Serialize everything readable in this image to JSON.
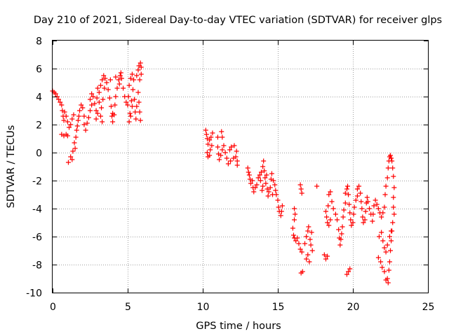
{
  "chart_data": {
    "type": "scatter",
    "title": "Day 210 of 2021, Sidereal Day-to-day VTEC variation (SDTVAR) for receiver glps",
    "xlabel": "GPS time / hours",
    "ylabel": "SDTVAR / TECUs",
    "xlim": [
      0,
      25
    ],
    "ylim": [
      -10,
      8
    ],
    "xticks": [
      "0",
      "5",
      "10",
      "15",
      "20",
      "25"
    ],
    "yticks": [
      "-10",
      "-8",
      "-6",
      "-4",
      "-2",
      "0",
      "2",
      "4",
      "6",
      "8"
    ],
    "grid": true,
    "marker": "+",
    "color": "#ff0000",
    "series": [
      {
        "name": "SDTVAR",
        "points": [
          [
            0.0,
            4.4
          ],
          [
            0.1,
            4.3
          ],
          [
            0.2,
            4.2
          ],
          [
            0.3,
            4.0
          ],
          [
            0.4,
            3.8
          ],
          [
            0.5,
            3.6
          ],
          [
            0.6,
            3.4
          ],
          [
            0.65,
            3.0
          ],
          [
            0.7,
            2.6
          ],
          [
            0.75,
            2.3
          ],
          [
            0.8,
            2.9
          ],
          [
            0.9,
            2.6
          ],
          [
            0.6,
            1.3
          ],
          [
            0.75,
            1.2
          ],
          [
            0.9,
            1.3
          ],
          [
            1.0,
            1.2
          ],
          [
            1.0,
            2.2
          ],
          [
            1.1,
            1.8
          ],
          [
            1.05,
            -0.7
          ],
          [
            1.2,
            -0.3
          ],
          [
            1.3,
            -0.5
          ],
          [
            1.35,
            0.1
          ],
          [
            1.45,
            0.7
          ],
          [
            1.5,
            0.3
          ],
          [
            1.55,
            1.1
          ],
          [
            1.6,
            1.6
          ],
          [
            1.65,
            1.9
          ],
          [
            1.7,
            2.3
          ],
          [
            1.75,
            2.6
          ],
          [
            1.3,
            2.4
          ],
          [
            1.2,
            2.0
          ],
          [
            1.4,
            2.7
          ],
          [
            1.8,
            3.0
          ],
          [
            1.9,
            3.4
          ],
          [
            2.0,
            3.2
          ],
          [
            2.1,
            2.6
          ],
          [
            2.1,
            2.0
          ],
          [
            2.2,
            1.6
          ],
          [
            2.3,
            2.1
          ],
          [
            2.4,
            2.5
          ],
          [
            2.5,
            3.0
          ],
          [
            2.5,
            3.8
          ],
          [
            2.6,
            3.4
          ],
          [
            2.7,
            4.0
          ],
          [
            2.8,
            3.5
          ],
          [
            2.9,
            3.0
          ],
          [
            2.9,
            2.4
          ],
          [
            3.0,
            2.8
          ],
          [
            3.1,
            3.6
          ],
          [
            3.1,
            4.3
          ],
          [
            3.2,
            4.8
          ],
          [
            3.3,
            5.2
          ],
          [
            3.4,
            5.5
          ],
          [
            3.5,
            5.3
          ],
          [
            3.45,
            4.6
          ],
          [
            3.35,
            3.8
          ],
          [
            3.25,
            3.2
          ],
          [
            3.2,
            2.6
          ],
          [
            3.3,
            2.2
          ],
          [
            2.95,
            3.9
          ],
          [
            2.6,
            4.2
          ],
          [
            3.0,
            4.6
          ],
          [
            3.6,
            5.0
          ],
          [
            3.7,
            4.5
          ],
          [
            3.8,
            3.9
          ],
          [
            3.9,
            3.3
          ],
          [
            4.0,
            2.8
          ],
          [
            4.0,
            2.2
          ],
          [
            4.1,
            2.7
          ],
          [
            4.15,
            3.4
          ],
          [
            4.2,
            4.0
          ],
          [
            4.3,
            4.6
          ],
          [
            4.4,
            5.2
          ],
          [
            4.5,
            5.5
          ],
          [
            4.6,
            5.3
          ],
          [
            4.7,
            4.6
          ],
          [
            4.8,
            4.0
          ],
          [
            4.9,
            3.6
          ],
          [
            5.0,
            3.4
          ],
          [
            5.05,
            4.0
          ],
          [
            5.1,
            4.8
          ],
          [
            5.2,
            5.3
          ],
          [
            5.3,
            5.6
          ],
          [
            5.4,
            5.2
          ],
          [
            5.35,
            4.5
          ],
          [
            5.25,
            3.7
          ],
          [
            5.15,
            2.8
          ],
          [
            5.1,
            2.2
          ],
          [
            5.2,
            2.6
          ],
          [
            5.3,
            3.3
          ],
          [
            5.45,
            3.8
          ],
          [
            5.5,
            2.9
          ],
          [
            5.55,
            2.4
          ],
          [
            5.6,
            3.3
          ],
          [
            5.7,
            4.3
          ],
          [
            5.75,
            3.6
          ],
          [
            5.8,
            2.9
          ],
          [
            5.85,
            2.3
          ],
          [
            5.8,
            5.2
          ],
          [
            5.7,
            5.9
          ],
          [
            5.75,
            6.2
          ],
          [
            5.85,
            6.4
          ],
          [
            5.9,
            6.1
          ],
          [
            5.9,
            5.6
          ],
          [
            5.6,
            5.5
          ],
          [
            4.55,
            5.7
          ],
          [
            4.2,
            5.4
          ],
          [
            3.85,
            5.2
          ],
          [
            3.95,
            2.6
          ],
          [
            4.45,
            4.9
          ],
          [
            10.2,
            1.6
          ],
          [
            10.25,
            1.3
          ],
          [
            10.3,
            1.0
          ],
          [
            10.35,
            0.6
          ],
          [
            10.3,
            0.0
          ],
          [
            10.35,
            -0.3
          ],
          [
            10.45,
            -0.2
          ],
          [
            10.5,
            0.2
          ],
          [
            10.6,
            0.5
          ],
          [
            10.55,
            1.1
          ],
          [
            10.65,
            1.4
          ],
          [
            10.45,
            0.9
          ],
          [
            11.0,
            1.1
          ],
          [
            11.0,
            0.4
          ],
          [
            11.05,
            -0.1
          ],
          [
            11.1,
            -0.5
          ],
          [
            11.2,
            -0.2
          ],
          [
            11.3,
            0.2
          ],
          [
            11.4,
            0.5
          ],
          [
            11.25,
            1.5
          ],
          [
            11.3,
            1.1
          ],
          [
            11.5,
            0.0
          ],
          [
            11.6,
            -0.4
          ],
          [
            11.7,
            -0.8
          ],
          [
            11.8,
            0.2
          ],
          [
            11.85,
            -0.6
          ],
          [
            11.9,
            0.4
          ],
          [
            12.05,
            -0.4
          ],
          [
            12.1,
            0.5
          ],
          [
            12.2,
            -0.3
          ],
          [
            12.25,
            0.1
          ],
          [
            12.3,
            -0.6
          ],
          [
            12.3,
            -0.9
          ],
          [
            13.0,
            -1.1
          ],
          [
            13.05,
            -1.4
          ],
          [
            13.1,
            -1.6
          ],
          [
            13.15,
            -1.9
          ],
          [
            13.2,
            -2.2
          ],
          [
            13.3,
            -2.0
          ],
          [
            13.35,
            -2.5
          ],
          [
            13.4,
            -2.8
          ],
          [
            13.5,
            -2.5
          ],
          [
            13.6,
            -2.3
          ],
          [
            13.7,
            -1.8
          ],
          [
            13.8,
            -1.6
          ],
          [
            13.9,
            -1.4
          ],
          [
            14.0,
            -1.0
          ],
          [
            14.05,
            -0.6
          ],
          [
            14.1,
            -1.3
          ],
          [
            14.15,
            -1.8
          ],
          [
            14.2,
            -2.2
          ],
          [
            14.3,
            -2.6
          ],
          [
            14.4,
            -2.8
          ],
          [
            14.5,
            -2.5
          ],
          [
            14.55,
            -1.9
          ],
          [
            14.6,
            -1.5
          ],
          [
            14.7,
            -2.0
          ],
          [
            14.8,
            -2.3
          ],
          [
            14.85,
            -2.7
          ],
          [
            14.9,
            -3.0
          ],
          [
            15.0,
            -3.4
          ],
          [
            15.05,
            -3.9
          ],
          [
            15.1,
            -4.2
          ],
          [
            15.2,
            -4.5
          ],
          [
            15.25,
            -4.2
          ],
          [
            15.3,
            -3.8
          ],
          [
            14.0,
            -2.4
          ],
          [
            13.85,
            -2.0
          ],
          [
            13.95,
            -2.7
          ],
          [
            14.25,
            -1.6
          ],
          [
            14.35,
            -3.1
          ],
          [
            14.65,
            -3.0
          ],
          [
            16.5,
            -2.3
          ],
          [
            16.55,
            -2.6
          ],
          [
            16.6,
            -2.9
          ],
          [
            16.1,
            -4.0
          ],
          [
            16.15,
            -4.4
          ],
          [
            16.1,
            -4.8
          ],
          [
            16.0,
            -5.4
          ],
          [
            16.05,
            -5.9
          ],
          [
            16.1,
            -6.1
          ],
          [
            16.2,
            -6.3
          ],
          [
            16.3,
            -6.1
          ],
          [
            16.4,
            -6.5
          ],
          [
            16.5,
            -6.9
          ],
          [
            16.6,
            -7.1
          ],
          [
            16.65,
            -8.5
          ],
          [
            16.55,
            -8.6
          ],
          [
            16.8,
            -6.5
          ],
          [
            16.9,
            -6.0
          ],
          [
            17.0,
            -5.6
          ],
          [
            17.05,
            -5.3
          ],
          [
            17.15,
            -6.2
          ],
          [
            17.2,
            -6.6
          ],
          [
            17.3,
            -7.0
          ],
          [
            17.0,
            -7.3
          ],
          [
            16.9,
            -7.6
          ],
          [
            17.1,
            -7.8
          ],
          [
            18.1,
            -7.3
          ],
          [
            18.2,
            -7.6
          ],
          [
            18.3,
            -7.4
          ],
          [
            18.2,
            -4.2
          ],
          [
            18.25,
            -4.6
          ],
          [
            18.3,
            -5.0
          ],
          [
            18.4,
            -5.2
          ],
          [
            18.5,
            -4.8
          ],
          [
            18.35,
            -3.8
          ],
          [
            18.4,
            -3.0
          ],
          [
            18.5,
            -2.8
          ],
          [
            18.6,
            -3.5
          ],
          [
            18.7,
            -4.0
          ],
          [
            18.85,
            -4.4
          ],
          [
            18.95,
            -4.8
          ],
          [
            19.05,
            -5.5
          ],
          [
            19.1,
            -6.1
          ],
          [
            19.15,
            -6.6
          ],
          [
            19.2,
            -6.2
          ],
          [
            19.25,
            -5.8
          ],
          [
            19.3,
            -5.3
          ],
          [
            19.35,
            -4.6
          ],
          [
            19.4,
            -4.1
          ],
          [
            19.5,
            -3.6
          ],
          [
            19.5,
            -2.9
          ],
          [
            19.6,
            -2.6
          ],
          [
            19.65,
            -2.4
          ],
          [
            19.7,
            -3.0
          ],
          [
            19.75,
            -3.7
          ],
          [
            19.8,
            -4.3
          ],
          [
            19.85,
            -4.8
          ],
          [
            19.9,
            -5.2
          ],
          [
            20.0,
            -5.0
          ],
          [
            20.05,
            -4.4
          ],
          [
            20.1,
            -3.9
          ],
          [
            20.2,
            -3.4
          ],
          [
            20.3,
            -3.1
          ],
          [
            20.3,
            -2.6
          ],
          [
            20.4,
            -2.4
          ],
          [
            20.5,
            -2.9
          ],
          [
            20.55,
            -3.5
          ],
          [
            20.6,
            -4.0
          ],
          [
            20.65,
            -4.6
          ],
          [
            20.7,
            -5.0
          ],
          [
            20.8,
            -4.8
          ],
          [
            20.85,
            -4.2
          ],
          [
            20.9,
            -3.6
          ],
          [
            20.95,
            -3.2
          ],
          [
            21.0,
            -3.5
          ],
          [
            21.1,
            -4.0
          ],
          [
            21.2,
            -4.4
          ],
          [
            21.3,
            -4.9
          ],
          [
            21.35,
            -4.4
          ],
          [
            21.4,
            -3.8
          ],
          [
            21.5,
            -3.4
          ],
          [
            21.6,
            -3.7
          ],
          [
            21.7,
            -4.0
          ],
          [
            21.8,
            -4.3
          ],
          [
            21.9,
            -4.6
          ],
          [
            22.0,
            -4.3
          ],
          [
            22.1,
            -3.9
          ],
          [
            22.15,
            -3.0
          ],
          [
            22.2,
            -2.4
          ],
          [
            22.3,
            -1.8
          ],
          [
            22.35,
            -1.1
          ],
          [
            22.4,
            -0.6
          ],
          [
            22.45,
            -0.3
          ],
          [
            22.5,
            -0.2
          ],
          [
            22.55,
            -0.4
          ],
          [
            22.6,
            -0.6
          ],
          [
            22.65,
            -1.1
          ],
          [
            22.7,
            -1.7
          ],
          [
            22.75,
            -2.5
          ],
          [
            22.7,
            -3.2
          ],
          [
            22.7,
            -3.9
          ],
          [
            22.75,
            -4.4
          ],
          [
            22.65,
            -5.0
          ],
          [
            22.6,
            -5.6
          ],
          [
            22.55,
            -6.3
          ],
          [
            22.5,
            -7.0
          ],
          [
            22.45,
            -7.8
          ],
          [
            22.4,
            -8.4
          ],
          [
            22.3,
            -9.0
          ],
          [
            22.35,
            -9.3
          ],
          [
            22.2,
            -9.1
          ],
          [
            22.1,
            -8.5
          ],
          [
            21.95,
            -8.2
          ],
          [
            21.85,
            -7.8
          ],
          [
            21.7,
            -7.5
          ],
          [
            21.75,
            -6.0
          ],
          [
            21.9,
            -5.7
          ],
          [
            22.0,
            -6.3
          ],
          [
            22.1,
            -6.8
          ],
          [
            22.2,
            -7.1
          ],
          [
            22.3,
            -6.6
          ],
          [
            22.45,
            -6.0
          ],
          [
            22.55,
            -5.6
          ],
          [
            19.7,
            -8.5
          ],
          [
            19.6,
            -8.7
          ],
          [
            19.8,
            -8.3
          ],
          [
            17.25,
            -5.7
          ],
          [
            17.6,
            -2.4
          ]
        ]
      }
    ]
  }
}
